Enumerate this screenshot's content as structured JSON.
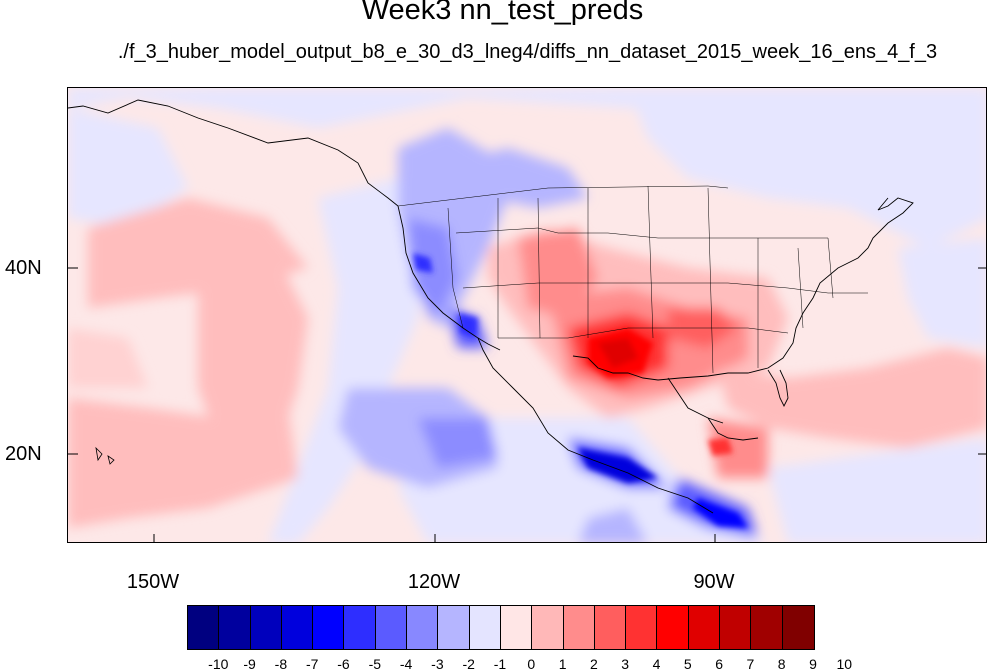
{
  "title": "Week3 nn_test_preds",
  "subtitle": "./f_3_huber_model_output_b8_e_30_d3_lneg4/diffs_nn_dataset_2015_week_16_ens_4_f_3",
  "map": {
    "lon_labels": [
      "150W",
      "120W",
      "90W"
    ],
    "lat_labels": [
      "40N",
      "20N"
    ],
    "lon_range": [
      -160,
      -63
    ],
    "lat_range": [
      10,
      58
    ]
  },
  "colorbar": {
    "labels": [
      "-10",
      "-9",
      "-8",
      "-7",
      "-6",
      "-5",
      "-4",
      "-3",
      "-2",
      "-1",
      "0",
      "1",
      "2",
      "3",
      "4",
      "5",
      "6",
      "7",
      "8",
      "9",
      "10"
    ],
    "colors": [
      "#000080",
      "#00009e",
      "#0000bd",
      "#0000dd",
      "#0000ff",
      "#2e2eff",
      "#5b5bff",
      "#8888ff",
      "#b5b5ff",
      "#e4e4ff",
      "#ffe6e6",
      "#ffb8b8",
      "#ff8c8c",
      "#ff5e5e",
      "#ff3232",
      "#ff0000",
      "#e00000",
      "#c00000",
      "#a00000",
      "#800000"
    ]
  }
}
